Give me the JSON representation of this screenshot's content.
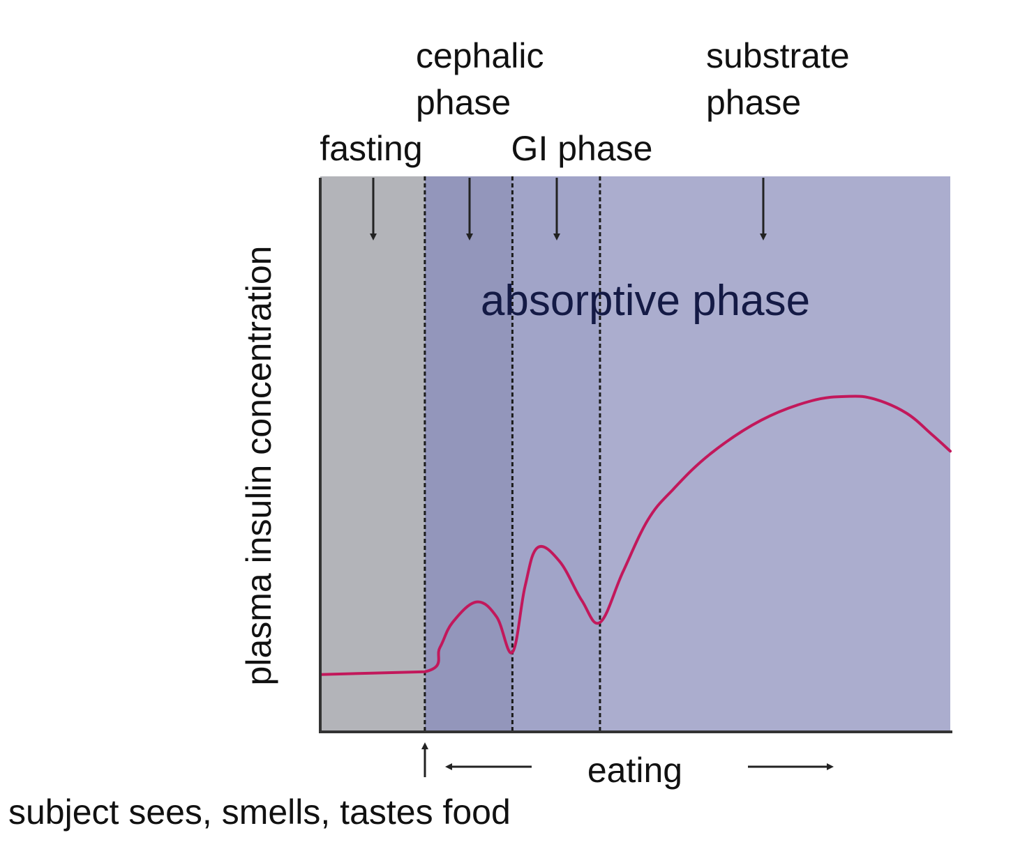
{
  "chart_data": {
    "type": "line",
    "title": "",
    "ylabel": "plasma insulin concentration",
    "xlabel": "",
    "grid": false,
    "xlim": [
      0,
      100
    ],
    "ylim": [
      0,
      100
    ],
    "phases": [
      {
        "name": "fasting",
        "lines": [
          "fasting"
        ],
        "x_start": 0,
        "x_end": 16.6,
        "color": "#b3b4b9"
      },
      {
        "name": "cephalic phase",
        "lines": [
          "cephalic",
          "phase"
        ],
        "x_start": 16.6,
        "x_end": 30.5,
        "color": "#9396bb"
      },
      {
        "name": "GI phase",
        "lines": [
          "GI phase"
        ],
        "x_start": 30.5,
        "x_end": 44.4,
        "color": "#a1a4c8"
      },
      {
        "name": "substrate phase",
        "lines": [
          "substrate",
          "phase"
        ],
        "x_start": 44.4,
        "x_end": 100,
        "color": "#abadce"
      }
    ],
    "band_label": "absorptive phase",
    "series": [
      {
        "color": "#c2185b",
        "x": [
          0,
          16.6,
          19,
          21,
          24.8,
          28,
          30.5,
          32.5,
          34.5,
          38,
          41.5,
          44.4,
          48,
          52,
          56,
          62,
          70,
          78,
          84,
          88,
          93,
          97,
          100
        ],
        "y": [
          10.1,
          10.6,
          15,
          19.5,
          23.2,
          20.5,
          14.1,
          26,
          33,
          30.5,
          23.5,
          19.5,
          28.5,
          38,
          43.5,
          50,
          56,
          59.5,
          60.3,
          59.8,
          57.3,
          53.5,
          50.4
        ]
      }
    ],
    "annotations": {
      "stimulus": "subject sees, smells, tastes food",
      "eating": "eating"
    }
  }
}
